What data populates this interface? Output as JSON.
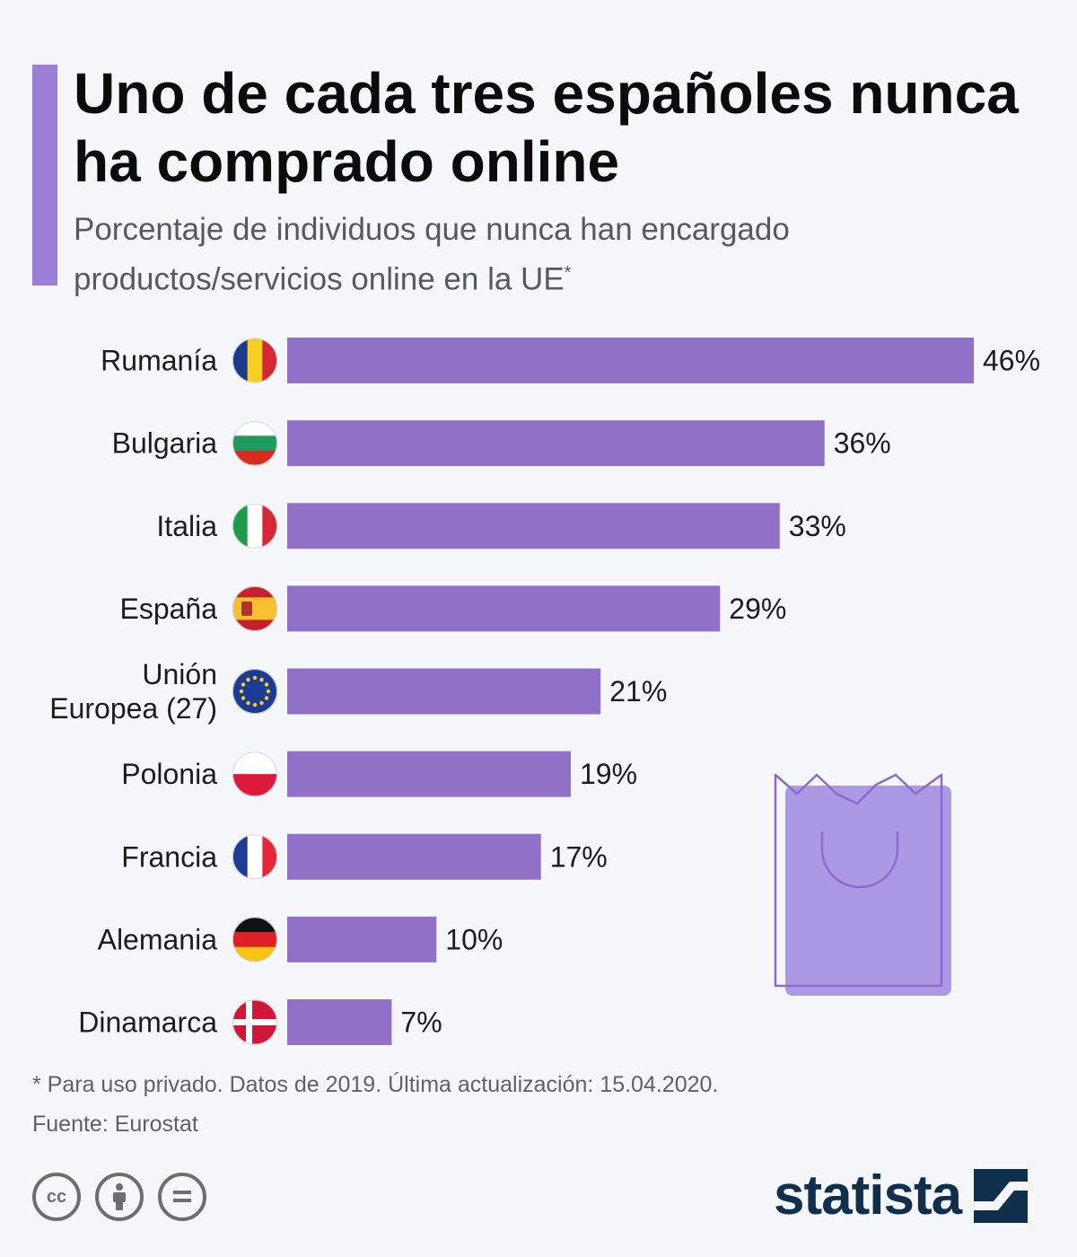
{
  "header": {
    "title": "Uno de cada tres españoles nunca ha comprado online",
    "subtitle": "Porcentaje de individuos que nunca han encargado productos/servicios online en la UE",
    "subtitle_mark": "*"
  },
  "colors": {
    "bar": "#9170c8",
    "accent": "#9b7fd4",
    "bag_fill": "#ac99e3",
    "bag_outline": "#8c6ad0"
  },
  "chart_data": {
    "type": "bar",
    "orientation": "horizontal",
    "title": "Uno de cada tres españoles nunca ha comprado online",
    "unit": "%",
    "categories": [
      "Rumanía",
      "Bulgaria",
      "Italia",
      "España",
      "Unión Europea (27)",
      "Polonia",
      "Francia",
      "Alemania",
      "Dinamarca"
    ],
    "category_lines": [
      [
        "Rumanía"
      ],
      [
        "Bulgaria"
      ],
      [
        "Italia"
      ],
      [
        "España"
      ],
      [
        "Unión",
        "Europea (27)"
      ],
      [
        "Polonia"
      ],
      [
        "Francia"
      ],
      [
        "Alemania"
      ],
      [
        "Dinamarca"
      ]
    ],
    "flags": [
      "romania-flag-icon",
      "bulgaria-flag-icon",
      "italy-flag-icon",
      "spain-flag-icon",
      "eu-flag-icon",
      "poland-flag-icon",
      "france-flag-icon",
      "germany-flag-icon",
      "denmark-flag-icon"
    ],
    "values": [
      46,
      36,
      33,
      29,
      21,
      19,
      17,
      10,
      7
    ],
    "value_labels": [
      "46%",
      "36%",
      "33%",
      "29%",
      "21%",
      "19%",
      "17%",
      "10%",
      "7%"
    ],
    "xlim": [
      0,
      46
    ]
  },
  "footer": {
    "note": "* Para uso privado. Datos de 2019. Última actualización: 15.04.2020.",
    "source": "Fuente: Eurostat",
    "brand": "statista",
    "license_icons": [
      "cc-icon",
      "attribution-icon",
      "no-derivatives-icon"
    ]
  }
}
